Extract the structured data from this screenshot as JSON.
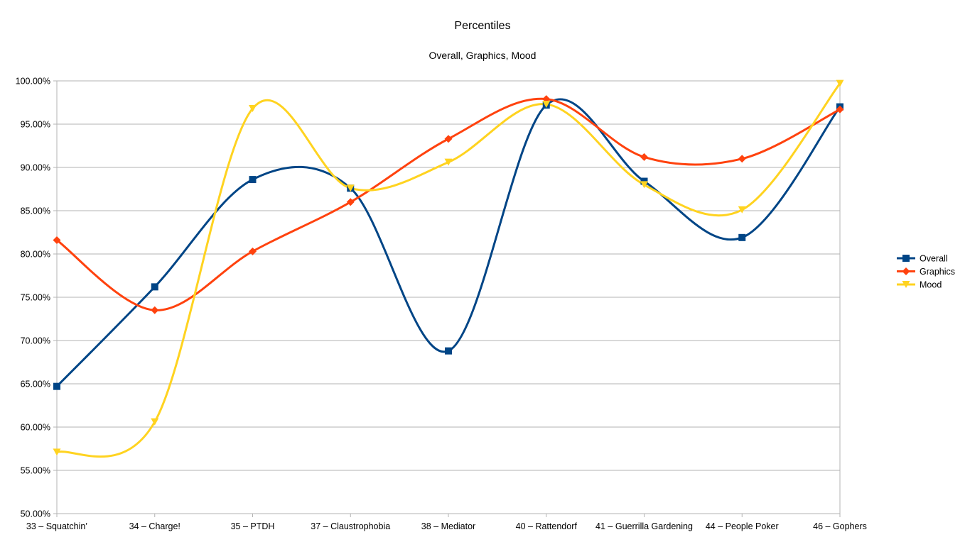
{
  "chart_data": {
    "type": "line",
    "title": "Percentiles",
    "subtitle": "Overall, Graphics, Mood",
    "categories": [
      "33 – Squatchin’",
      "34 – Charge!",
      "35 – PTDH",
      "37 – Claustrophobia",
      "38 – Mediator",
      "40 – Rattendorf",
      "41 – Guerrilla Gardening",
      "44 – People Poker",
      "46 – Gophers"
    ],
    "ylim": [
      50,
      100
    ],
    "yticks": [
      "50.00%",
      "55.00%",
      "60.00%",
      "65.00%",
      "70.00%",
      "75.00%",
      "80.00%",
      "85.00%",
      "90.00%",
      "95.00%",
      "100.00%"
    ],
    "ytick_values": [
      50,
      55,
      60,
      65,
      70,
      75,
      80,
      85,
      90,
      95,
      100
    ],
    "grid": true,
    "smooth": true,
    "legend_position": "right",
    "series": [
      {
        "name": "Overall",
        "color": "#004586",
        "marker": "square",
        "values": [
          64.7,
          76.2,
          88.6,
          87.6,
          68.8,
          97.2,
          88.4,
          81.9,
          97.0
        ]
      },
      {
        "name": "Graphics",
        "color": "#ff420e",
        "marker": "diamond",
        "values": [
          81.6,
          73.5,
          80.3,
          86.0,
          93.3,
          97.9,
          91.2,
          91.0,
          96.7
        ]
      },
      {
        "name": "Mood",
        "color": "#ffd320",
        "marker": "triangle-down",
        "values": [
          57.1,
          60.6,
          96.8,
          87.6,
          90.6,
          97.3,
          88.0,
          85.1,
          99.7
        ]
      }
    ]
  }
}
